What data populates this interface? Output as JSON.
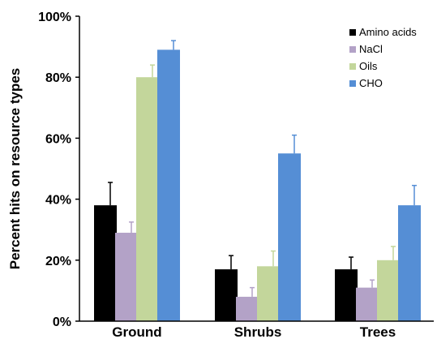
{
  "chart_data": {
    "type": "bar",
    "title": "",
    "xlabel": "",
    "ylabel": "Percent hits on resource types",
    "ylim": [
      0,
      100
    ],
    "yticks": [
      0,
      20,
      40,
      60,
      80,
      100
    ],
    "ytick_labels": [
      "0%",
      "20%",
      "40%",
      "60%",
      "80%",
      "100%"
    ],
    "categories": [
      "Ground",
      "Shrubs",
      "Trees"
    ],
    "series": [
      {
        "name": "Amino acids",
        "color": "#000000",
        "values": [
          38,
          17,
          17
        ],
        "errors": [
          7.5,
          4.5,
          4
        ]
      },
      {
        "name": "NaCl",
        "color": "#b3a2c7",
        "values": [
          29,
          8,
          11
        ],
        "errors": [
          3.5,
          3,
          2.5
        ]
      },
      {
        "name": "Oils",
        "color": "#c3d69b",
        "values": [
          80,
          18,
          20
        ],
        "errors": [
          4,
          5,
          4.5
        ]
      },
      {
        "name": "CHO",
        "color": "#558ed5",
        "values": [
          89,
          55,
          38
        ],
        "errors": [
          3,
          6,
          6.5
        ]
      }
    ],
    "grid": false,
    "legend_position": "top-right"
  }
}
